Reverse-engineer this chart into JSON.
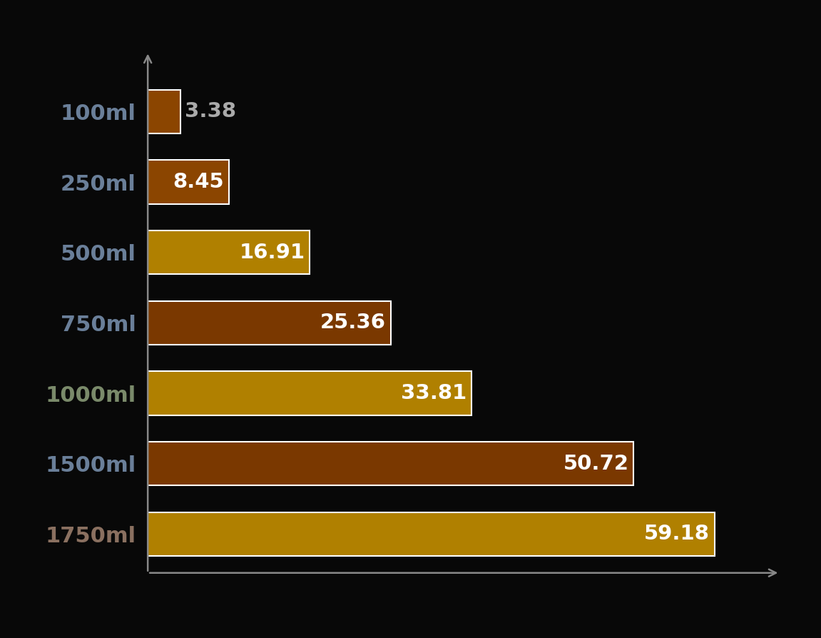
{
  "categories": [
    "100ml",
    "250ml",
    "500ml",
    "750ml",
    "1000ml",
    "1500ml",
    "1750ml"
  ],
  "values": [
    3.38,
    8.45,
    16.91,
    25.36,
    33.81,
    50.72,
    59.18
  ],
  "bar_colors": [
    "#8B4500",
    "#8B4500",
    "#B08000",
    "#7A3800",
    "#B08000",
    "#7A3800",
    "#B08000"
  ],
  "bar_edge_color": "#FFFFFF",
  "label_color_inside": "#FFFFFF",
  "label_color_outside": "#AAAAAA",
  "background_color": "#080808",
  "axis_color": "#888888",
  "tick_label_colors": [
    "#6A7F99",
    "#6A7F99",
    "#6A7F99",
    "#6A7F99",
    "#7A8A6A",
    "#6A7F99",
    "#8A7060"
  ],
  "font_size_labels": 22,
  "font_size_values": 21,
  "xlim": [
    0,
    66
  ],
  "bar_height": 0.62
}
